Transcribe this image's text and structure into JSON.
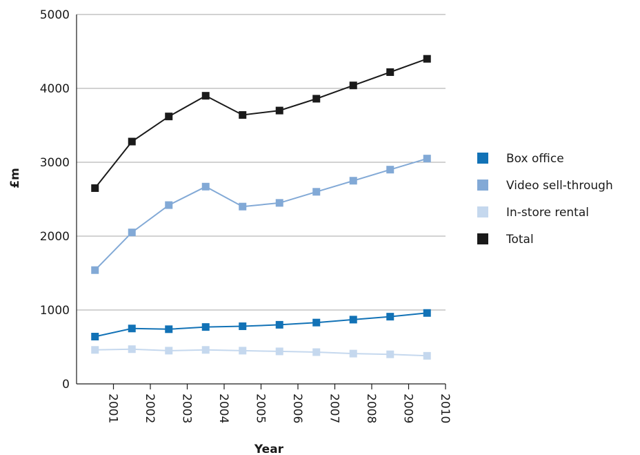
{
  "chart_data": {
    "type": "line",
    "title": "",
    "xlabel": "Year",
    "ylabel": "£m",
    "x": [
      "2001",
      "2002",
      "2003",
      "2004",
      "2005",
      "2006",
      "2007",
      "2008",
      "2009",
      "2010"
    ],
    "ylim": [
      0,
      5000
    ],
    "yticks": [
      "0",
      "1000",
      "2000",
      "3000",
      "4000",
      "5000"
    ],
    "grid": "horizontal",
    "legend_position": "right",
    "series": [
      {
        "name": "Box office",
        "color": "#1272b6",
        "values": [
          640,
          750,
          740,
          770,
          780,
          800,
          830,
          870,
          910,
          960
        ]
      },
      {
        "name": "Video sell-through",
        "color": "#82a9d6",
        "values": [
          1540,
          2050,
          2420,
          2670,
          2400,
          2450,
          2600,
          2750,
          2900,
          3050
        ]
      },
      {
        "name": "In-store rental",
        "color": "#c5d8ee",
        "values": [
          460,
          470,
          450,
          460,
          450,
          440,
          430,
          410,
          400,
          380
        ]
      },
      {
        "name": "Total",
        "color": "#1a1a1a",
        "values": [
          2650,
          3280,
          3620,
          3900,
          3640,
          3700,
          3860,
          4040,
          4220,
          4400
        ]
      }
    ]
  }
}
